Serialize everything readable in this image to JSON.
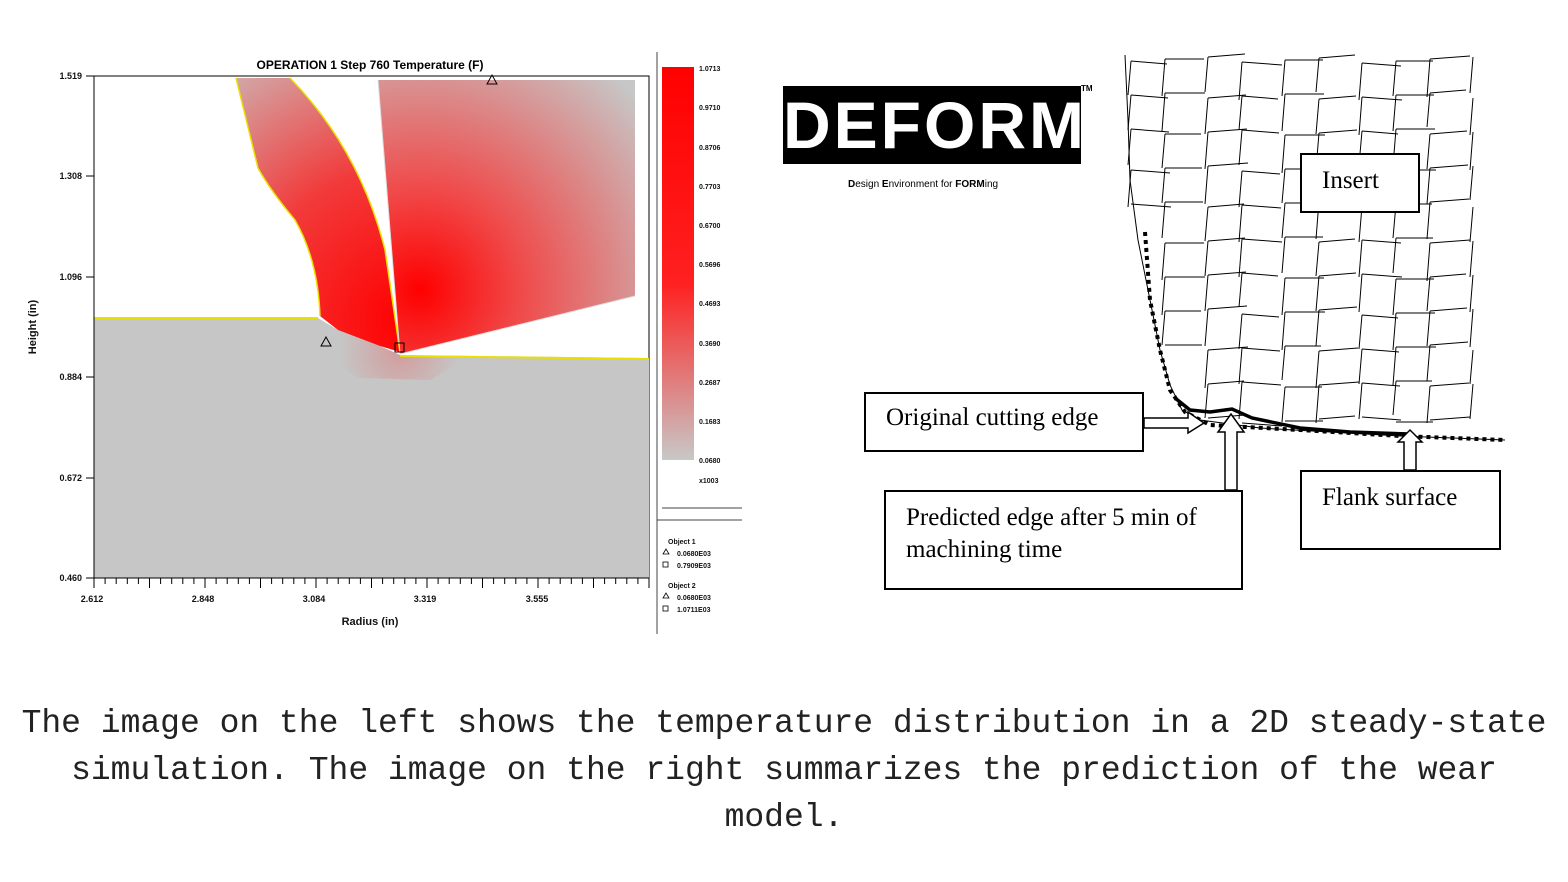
{
  "left_figure": {
    "title": "OPERATION 1 Step 760  Temperature (F)",
    "x_axis": {
      "title": "Radius (in)",
      "ticks": [
        "2.612",
        "2.848",
        "3.084",
        "3.319",
        "3.555"
      ]
    },
    "y_axis": {
      "title": "Height (in)",
      "ticks": [
        "1.519",
        "1.308",
        "1.096",
        "0.884",
        "0.672",
        "0.460"
      ]
    },
    "colorbar": {
      "ticks": [
        "1.0713",
        "0.9710",
        "0.8706",
        "0.7703",
        "0.6700",
        "0.5696",
        "0.4693",
        "0.3690",
        "0.2687",
        "0.1683",
        "0.0680"
      ],
      "multiplier": "x1003",
      "colors": {
        "max": "#ff0000",
        "min": "#c6c6c6"
      }
    },
    "legend": {
      "object1_title": "Object  1",
      "object1_tri": "0.0680E03",
      "object1_sq": "0.7909E03",
      "object2_title": "Object  2",
      "object2_tri": "0.0680E03",
      "object2_sq": "1.0711E03"
    }
  },
  "logo": {
    "word": "DEFORM",
    "tm": "TM",
    "subtitle_parts": [
      "D",
      "esign ",
      "E",
      "nvironment for ",
      "FORM",
      "ing"
    ]
  },
  "right_figure": {
    "labels": {
      "insert": "Insert",
      "original_edge": "Original cutting edge",
      "predicted_edge": "Predicted edge after 5 min of machining time",
      "flank_surface": "Flank surface"
    }
  },
  "caption": "The image on the left shows the temperature distribution in a 2D steady-state simulation.  The image on the right summarizes the prediction of the wear model."
}
